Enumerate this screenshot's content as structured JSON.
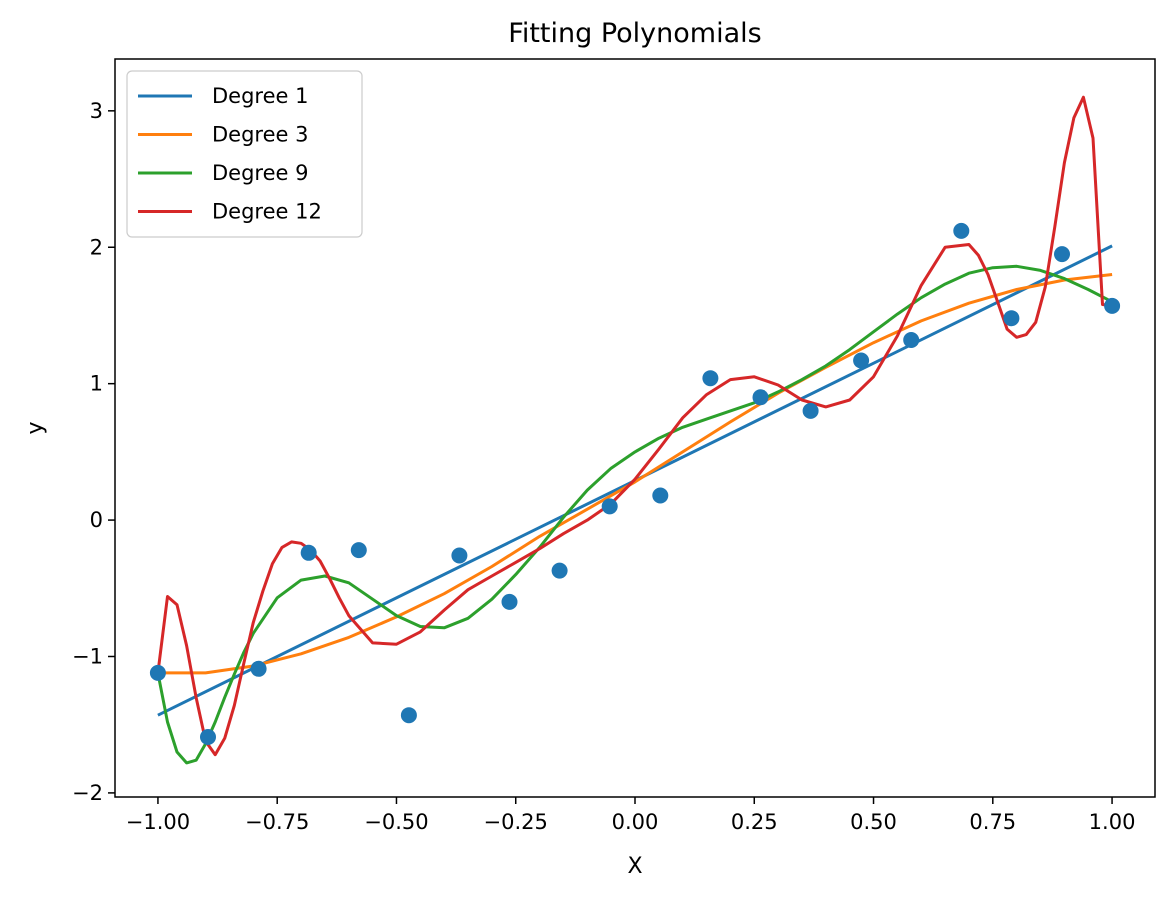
{
  "chart_data": {
    "type": "line",
    "title": "Fitting Polynomials",
    "xlabel": "X",
    "ylabel": "y",
    "xlim": [
      -1.09,
      1.09
    ],
    "ylim": [
      -2.03,
      3.38
    ],
    "xticks": [
      -1.0,
      -0.75,
      -0.5,
      -0.25,
      0.0,
      0.25,
      0.5,
      0.75,
      1.0
    ],
    "xtick_labels": [
      "−1.00",
      "−0.75",
      "−0.50",
      "−0.25",
      "0.00",
      "0.25",
      "0.50",
      "0.75",
      "1.00"
    ],
    "yticks": [
      -2,
      -1,
      0,
      1,
      2,
      3
    ],
    "ytick_labels": [
      "−2",
      "−1",
      "0",
      "1",
      "2",
      "3"
    ],
    "grid": false,
    "legend_position": "top-left",
    "scatter": {
      "color": "#1f77b4",
      "x": [
        -1.0,
        -0.895,
        -0.789,
        -0.684,
        -0.579,
        -0.474,
        -0.368,
        -0.263,
        -0.158,
        -0.053,
        0.053,
        0.158,
        0.263,
        0.368,
        0.474,
        0.579,
        0.684,
        0.789,
        0.895,
        1.0
      ],
      "y": [
        -1.12,
        -1.59,
        -1.09,
        -0.24,
        -0.22,
        -1.43,
        -0.26,
        -0.6,
        -0.37,
        0.1,
        0.18,
        1.04,
        0.9,
        0.8,
        1.17,
        1.32,
        2.12,
        1.48,
        1.95,
        1.57
      ]
    },
    "series": [
      {
        "name": "Degree 1",
        "color": "#1f77b4",
        "x": [
          -1.0,
          1.0
        ],
        "y": [
          -1.43,
          2.01
        ]
      },
      {
        "name": "Degree 3",
        "color": "#ff7f0e",
        "x": [
          -1.0,
          -0.9,
          -0.8,
          -0.7,
          -0.6,
          -0.5,
          -0.4,
          -0.3,
          -0.2,
          -0.1,
          0.0,
          0.1,
          0.2,
          0.3,
          0.4,
          0.5,
          0.6,
          0.7,
          0.8,
          0.9,
          1.0
        ],
        "y": [
          -1.12,
          -1.12,
          -1.07,
          -0.98,
          -0.86,
          -0.71,
          -0.54,
          -0.34,
          -0.12,
          0.08,
          0.28,
          0.5,
          0.72,
          0.93,
          1.12,
          1.3,
          1.46,
          1.59,
          1.69,
          1.76,
          1.8
        ]
      },
      {
        "name": "Degree 9",
        "color": "#2ca02c",
        "x": [
          -1.0,
          -0.98,
          -0.96,
          -0.94,
          -0.92,
          -0.9,
          -0.88,
          -0.86,
          -0.84,
          -0.82,
          -0.8,
          -0.75,
          -0.7,
          -0.65,
          -0.6,
          -0.55,
          -0.5,
          -0.45,
          -0.4,
          -0.35,
          -0.3,
          -0.25,
          -0.2,
          -0.15,
          -0.1,
          -0.05,
          0.0,
          0.05,
          0.1,
          0.15,
          0.2,
          0.25,
          0.3,
          0.35,
          0.4,
          0.45,
          0.5,
          0.55,
          0.6,
          0.65,
          0.7,
          0.75,
          0.8,
          0.85,
          0.9,
          0.95,
          1.0
        ],
        "y": [
          -1.12,
          -1.48,
          -1.7,
          -1.78,
          -1.76,
          -1.64,
          -1.48,
          -1.3,
          -1.13,
          -0.97,
          -0.83,
          -0.57,
          -0.44,
          -0.41,
          -0.46,
          -0.58,
          -0.7,
          -0.78,
          -0.79,
          -0.72,
          -0.58,
          -0.4,
          -0.2,
          0.02,
          0.22,
          0.38,
          0.5,
          0.6,
          0.68,
          0.74,
          0.8,
          0.86,
          0.94,
          1.03,
          1.13,
          1.25,
          1.38,
          1.51,
          1.63,
          1.73,
          1.81,
          1.85,
          1.86,
          1.83,
          1.77,
          1.69,
          1.6
        ]
      },
      {
        "name": "Degree 12",
        "color": "#d62728",
        "x": [
          -1.0,
          -0.98,
          -0.96,
          -0.94,
          -0.92,
          -0.9,
          -0.88,
          -0.86,
          -0.84,
          -0.82,
          -0.8,
          -0.78,
          -0.76,
          -0.74,
          -0.72,
          -0.7,
          -0.68,
          -0.66,
          -0.64,
          -0.62,
          -0.6,
          -0.55,
          -0.5,
          -0.45,
          -0.4,
          -0.35,
          -0.3,
          -0.25,
          -0.2,
          -0.15,
          -0.1,
          -0.05,
          0.0,
          0.05,
          0.1,
          0.15,
          0.2,
          0.25,
          0.3,
          0.35,
          0.4,
          0.45,
          0.5,
          0.55,
          0.6,
          0.65,
          0.7,
          0.72,
          0.74,
          0.76,
          0.78,
          0.8,
          0.82,
          0.84,
          0.86,
          0.88,
          0.9,
          0.92,
          0.94,
          0.96,
          0.98,
          1.0
        ],
        "y": [
          -1.12,
          -0.56,
          -0.62,
          -0.92,
          -1.3,
          -1.62,
          -1.72,
          -1.6,
          -1.36,
          -1.05,
          -0.75,
          -0.52,
          -0.32,
          -0.2,
          -0.16,
          -0.17,
          -0.22,
          -0.3,
          -0.43,
          -0.57,
          -0.7,
          -0.9,
          -0.91,
          -0.82,
          -0.66,
          -0.51,
          -0.41,
          -0.31,
          -0.21,
          -0.1,
          0.0,
          0.12,
          0.3,
          0.52,
          0.75,
          0.92,
          1.03,
          1.05,
          0.99,
          0.88,
          0.83,
          0.88,
          1.05,
          1.35,
          1.72,
          2.0,
          2.02,
          1.94,
          1.8,
          1.6,
          1.4,
          1.34,
          1.36,
          1.45,
          1.71,
          2.15,
          2.62,
          2.95,
          3.1,
          2.8,
          1.58,
          1.57
        ]
      }
    ]
  }
}
